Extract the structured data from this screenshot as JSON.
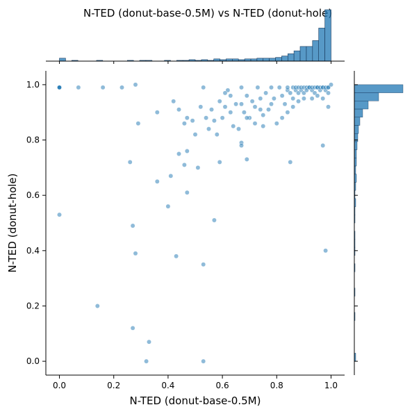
{
  "chart_data": {
    "type": "scatter",
    "title": "N-TED (donut-base-0.5M) vs N-TED (donut-hole)",
    "xlabel": "N-TED (donut-base-0.5M)",
    "ylabel": "N-TED (donut-hole)",
    "xlim": [
      -0.05,
      1.05
    ],
    "ylim": [
      -0.05,
      1.05
    ],
    "xticks": [
      "0.0",
      "0.2",
      "0.4",
      "0.6",
      "0.8",
      "1.0"
    ],
    "yticks": [
      "0.0",
      "0.2",
      "0.4",
      "0.6",
      "0.8",
      "1.0"
    ],
    "grid": false,
    "point_color": "#1f77b4",
    "marginals": "histogram",
    "points": [
      [
        0.0,
        0.99
      ],
      [
        0.0,
        0.99
      ],
      [
        0.0,
        0.99
      ],
      [
        0.0,
        0.99
      ],
      [
        0.07,
        0.99
      ],
      [
        0.16,
        0.99
      ],
      [
        0.23,
        0.99
      ],
      [
        0.28,
        1.0
      ],
      [
        0.29,
        0.86
      ],
      [
        0.36,
        0.9
      ],
      [
        0.42,
        0.94
      ],
      [
        0.44,
        0.91
      ],
      [
        0.46,
        0.86
      ],
      [
        0.47,
        0.88
      ],
      [
        0.49,
        0.87
      ],
      [
        0.5,
        0.82
      ],
      [
        0.52,
        0.92
      ],
      [
        0.53,
        0.99
      ],
      [
        0.54,
        0.88
      ],
      [
        0.55,
        0.84
      ],
      [
        0.56,
        0.91
      ],
      [
        0.57,
        0.87
      ],
      [
        0.58,
        0.82
      ],
      [
        0.59,
        0.94
      ],
      [
        0.6,
        0.88
      ],
      [
        0.61,
        0.92
      ],
      [
        0.62,
        0.98
      ],
      [
        0.63,
        0.9
      ],
      [
        0.64,
        0.85
      ],
      [
        0.65,
        0.93
      ],
      [
        0.66,
        0.84
      ],
      [
        0.67,
        0.99
      ],
      [
        0.68,
        0.9
      ],
      [
        0.69,
        0.96
      ],
      [
        0.7,
        0.88
      ],
      [
        0.71,
        0.94
      ],
      [
        0.72,
        0.92
      ],
      [
        0.73,
        0.99
      ],
      [
        0.74,
        0.95
      ],
      [
        0.75,
        0.89
      ],
      [
        0.76,
        0.97
      ],
      [
        0.77,
        0.91
      ],
      [
        0.78,
        0.99
      ],
      [
        0.79,
        0.95
      ],
      [
        0.8,
        0.86
      ],
      [
        0.81,
        0.99
      ],
      [
        0.82,
        0.96
      ],
      [
        0.83,
        0.93
      ],
      [
        0.84,
        0.98
      ],
      [
        0.84,
        0.99
      ],
      [
        0.85,
        0.97
      ],
      [
        0.86,
        0.99
      ],
      [
        0.86,
        0.95
      ],
      [
        0.87,
        0.98
      ],
      [
        0.87,
        0.99
      ],
      [
        0.88,
        0.97
      ],
      [
        0.88,
        0.99
      ],
      [
        0.89,
        0.98
      ],
      [
        0.89,
        0.99
      ],
      [
        0.9,
        0.99
      ],
      [
        0.9,
        0.97
      ],
      [
        0.91,
        0.99
      ],
      [
        0.91,
        0.98
      ],
      [
        0.92,
        0.99
      ],
      [
        0.92,
        0.99
      ],
      [
        0.93,
        0.98
      ],
      [
        0.93,
        0.99
      ],
      [
        0.94,
        0.99
      ],
      [
        0.94,
        0.97
      ],
      [
        0.95,
        0.99
      ],
      [
        0.95,
        0.99
      ],
      [
        0.96,
        0.98
      ],
      [
        0.96,
        0.99
      ],
      [
        0.97,
        0.99
      ],
      [
        0.97,
        0.99
      ],
      [
        0.98,
        0.98
      ],
      [
        0.98,
        0.99
      ],
      [
        0.99,
        0.99
      ],
      [
        0.99,
        0.99
      ],
      [
        1.0,
        1.0
      ],
      [
        0.86,
        0.92
      ],
      [
        0.88,
        0.94
      ],
      [
        0.9,
        0.95
      ],
      [
        0.93,
        0.95
      ],
      [
        0.95,
        0.96
      ],
      [
        0.97,
        0.95
      ],
      [
        0.99,
        0.97
      ],
      [
        0.84,
        0.9
      ],
      [
        0.82,
        0.88
      ],
      [
        0.78,
        0.93
      ],
      [
        0.74,
        0.91
      ],
      [
        0.72,
        0.86
      ],
      [
        0.69,
        0.88
      ],
      [
        0.67,
        0.93
      ],
      [
        0.63,
        0.96
      ],
      [
        0.61,
        0.97
      ],
      [
        0.99,
        0.92
      ],
      [
        0.97,
        0.78
      ],
      [
        0.98,
        0.4
      ],
      [
        0.85,
        0.72
      ],
      [
        0.75,
        0.85
      ],
      [
        0.67,
        0.79
      ],
      [
        0.69,
        0.73
      ],
      [
        0.67,
        0.78
      ],
      [
        0.59,
        0.72
      ],
      [
        0.51,
        0.7
      ],
      [
        0.47,
        0.76
      ],
      [
        0.46,
        0.71
      ],
      [
        0.44,
        0.75
      ],
      [
        0.41,
        0.67
      ],
      [
        0.36,
        0.65
      ],
      [
        0.47,
        0.61
      ],
      [
        0.26,
        0.72
      ],
      [
        0.4,
        0.56
      ],
      [
        0.0,
        0.53
      ],
      [
        0.57,
        0.51
      ],
      [
        0.27,
        0.49
      ],
      [
        0.28,
        0.39
      ],
      [
        0.43,
        0.38
      ],
      [
        0.53,
        0.35
      ],
      [
        0.14,
        0.2
      ],
      [
        0.27,
        0.12
      ],
      [
        0.33,
        0.07
      ],
      [
        0.32,
        0.0
      ],
      [
        0.53,
        0.0
      ]
    ],
    "x_marginal_counts": [
      4,
      0,
      1,
      0,
      0,
      0,
      1,
      0,
      0,
      0,
      0,
      1,
      0,
      1,
      1,
      0,
      0,
      1,
      0,
      1,
      1,
      2,
      1,
      2,
      1,
      3,
      2,
      3,
      3,
      2,
      3,
      3,
      4,
      4,
      4,
      5,
      7,
      10,
      14,
      20,
      20,
      28,
      45,
      70
    ],
    "y_marginal_counts": [
      2,
      0,
      0,
      0,
      0,
      1,
      0,
      0,
      1,
      0,
      0,
      1,
      0,
      1,
      1,
      1,
      0,
      1,
      1,
      2,
      1,
      2,
      3,
      2,
      3,
      3,
      4,
      5,
      6,
      8,
      12,
      20,
      35,
      70
    ]
  }
}
